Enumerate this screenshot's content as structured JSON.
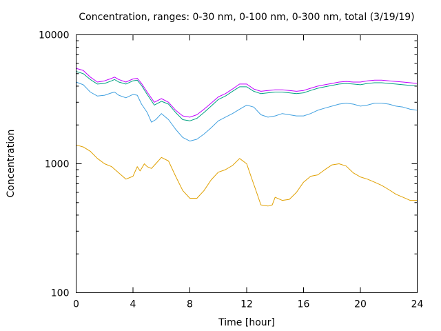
{
  "chart_data": {
    "type": "line",
    "title": "Concentration, ranges: 0-30 nm, 0-100 nm, 0-300 nm, total (3/19/19)",
    "xlabel": "Time [hour]",
    "ylabel": "Concentration",
    "xlim": [
      0,
      24
    ],
    "ylim": [
      100,
      10000
    ],
    "y_scale": "log",
    "grid": false,
    "legend": "none",
    "x_ticks": [
      0,
      4,
      8,
      12,
      16,
      20,
      24
    ],
    "y_ticks": [
      100,
      1000,
      10000
    ],
    "x_tick_labels": [
      "0",
      "4",
      "8",
      "12",
      "16",
      "20",
      "24"
    ],
    "y_tick_labels": [
      "100",
      "1000",
      "10000"
    ],
    "series": [
      {
        "color": "#c000ff",
        "x": [
          0,
          0.5,
          1,
          1.5,
          2,
          2.5,
          2.7,
          3,
          3.5,
          4,
          4.3,
          4.6,
          5,
          5.5,
          6,
          6.5,
          7,
          7.5,
          8,
          8.5,
          9,
          9.5,
          10,
          10.5,
          11,
          11.5,
          12,
          12.5,
          13,
          13.5,
          14,
          14.5,
          15,
          15.5,
          16,
          16.5,
          17,
          17.5,
          18,
          18.5,
          19,
          19.5,
          20,
          20.5,
          21,
          21.5,
          22,
          22.5,
          23,
          23.5,
          24
        ],
        "y": [
          5500,
          5300,
          4700,
          4300,
          4400,
          4600,
          4700,
          4500,
          4300,
          4550,
          4600,
          4200,
          3600,
          3000,
          3200,
          3000,
          2600,
          2350,
          2300,
          2400,
          2650,
          2950,
          3300,
          3500,
          3800,
          4150,
          4150,
          3800,
          3650,
          3700,
          3750,
          3750,
          3700,
          3650,
          3700,
          3850,
          4000,
          4100,
          4200,
          4300,
          4350,
          4300,
          4300,
          4400,
          4450,
          4450,
          4400,
          4350,
          4300,
          4250,
          4200
        ]
      },
      {
        "color": "#00a080",
        "x": [
          0,
          0.5,
          1,
          1.5,
          2,
          2.5,
          2.7,
          3,
          3.5,
          4,
          4.3,
          4.6,
          5,
          5.5,
          6,
          6.5,
          7,
          7.5,
          8,
          8.5,
          9,
          9.5,
          10,
          10.5,
          11,
          11.5,
          12,
          12.5,
          13,
          13.5,
          14,
          14.5,
          15,
          15.5,
          16,
          16.5,
          17,
          17.5,
          18,
          18.5,
          19,
          19.5,
          20,
          20.5,
          21,
          21.5,
          22,
          22.5,
          23,
          23.5,
          24
        ],
        "y": [
          5200,
          5000,
          4500,
          4150,
          4200,
          4400,
          4500,
          4300,
          4150,
          4400,
          4450,
          4050,
          3450,
          2850,
          3050,
          2900,
          2500,
          2200,
          2150,
          2250,
          2500,
          2800,
          3150,
          3350,
          3650,
          3950,
          3950,
          3650,
          3500,
          3550,
          3600,
          3600,
          3550,
          3500,
          3550,
          3700,
          3850,
          3950,
          4050,
          4150,
          4200,
          4150,
          4100,
          4200,
          4250,
          4250,
          4200,
          4150,
          4100,
          4050,
          4000
        ]
      },
      {
        "color": "#40a0e0",
        "x": [
          0,
          0.5,
          1,
          1.5,
          2,
          2.5,
          2.7,
          3,
          3.5,
          4,
          4.3,
          4.6,
          5,
          5.3,
          5.6,
          6,
          6.5,
          7,
          7.5,
          8,
          8.5,
          9,
          9.5,
          10,
          10.5,
          11,
          11.5,
          12,
          12.5,
          13,
          13.5,
          14,
          14.5,
          15,
          15.5,
          16,
          16.5,
          17,
          17.5,
          18,
          18.5,
          19,
          19.5,
          20,
          20.5,
          21,
          21.5,
          22,
          22.5,
          23,
          23.5,
          24
        ],
        "y": [
          4300,
          4100,
          3600,
          3350,
          3400,
          3550,
          3600,
          3400,
          3250,
          3450,
          3400,
          2900,
          2500,
          2100,
          2200,
          2450,
          2200,
          1850,
          1600,
          1500,
          1550,
          1700,
          1900,
          2150,
          2300,
          2450,
          2650,
          2850,
          2750,
          2400,
          2300,
          2350,
          2450,
          2400,
          2350,
          2350,
          2450,
          2600,
          2700,
          2800,
          2900,
          2950,
          2900,
          2800,
          2850,
          2950,
          2950,
          2900,
          2800,
          2750,
          2650,
          2600
        ]
      },
      {
        "color": "#e0a000",
        "x": [
          0,
          0.5,
          1,
          1.5,
          2,
          2.5,
          3,
          3.5,
          4,
          4.3,
          4.5,
          4.8,
          5,
          5.3,
          5.6,
          6,
          6.5,
          7,
          7.5,
          8,
          8.5,
          9,
          9.5,
          10,
          10.5,
          11,
          11.5,
          12,
          12.3,
          12.7,
          13,
          13.5,
          13.8,
          14,
          14.5,
          15,
          15.5,
          16,
          16.5,
          17,
          17.5,
          18,
          18.5,
          19,
          19.5,
          20,
          20.5,
          21,
          21.5,
          22,
          22.5,
          23,
          23.5,
          24
        ],
        "y": [
          1400,
          1350,
          1250,
          1100,
          1000,
          950,
          850,
          760,
          800,
          950,
          880,
          1000,
          950,
          920,
          1000,
          1120,
          1050,
          800,
          620,
          540,
          540,
          620,
          750,
          860,
          900,
          970,
          1100,
          1000,
          800,
          600,
          480,
          470,
          480,
          550,
          520,
          530,
          600,
          720,
          800,
          820,
          900,
          980,
          1000,
          960,
          850,
          790,
          760,
          720,
          680,
          630,
          580,
          550,
          520,
          520
        ]
      }
    ]
  }
}
